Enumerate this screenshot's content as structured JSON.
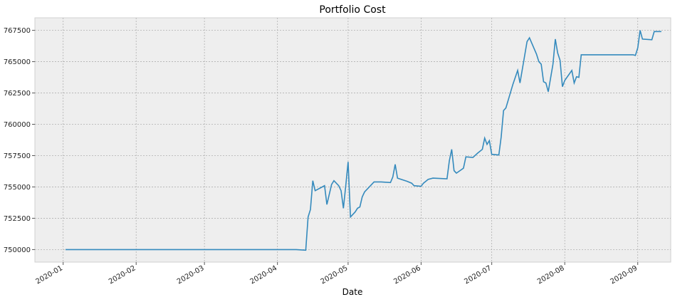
{
  "chart_data": {
    "type": "line",
    "title": "Portfolio Cost",
    "xlabel": "Date",
    "ylabel": "",
    "grid": true,
    "xlim": [
      "2019-12-20",
      "2020-09-15"
    ],
    "ylim": [
      749000,
      768500
    ],
    "x_ticks": [
      {
        "date": "2020-01-01",
        "label": "2020-01"
      },
      {
        "date": "2020-02-01",
        "label": "2020-02"
      },
      {
        "date": "2020-03-01",
        "label": "2020-03"
      },
      {
        "date": "2020-04-01",
        "label": "2020-04"
      },
      {
        "date": "2020-05-01",
        "label": "2020-05"
      },
      {
        "date": "2020-06-01",
        "label": "2020-06"
      },
      {
        "date": "2020-07-01",
        "label": "2020-07"
      },
      {
        "date": "2020-08-01",
        "label": "2020-08"
      },
      {
        "date": "2020-09-01",
        "label": "2020-09"
      }
    ],
    "y_ticks": [
      {
        "value": 750000,
        "label": "750000"
      },
      {
        "value": 752500,
        "label": "752500"
      },
      {
        "value": 755000,
        "label": "755000"
      },
      {
        "value": 757500,
        "label": "757500"
      },
      {
        "value": 760000,
        "label": "760000"
      },
      {
        "value": 762500,
        "label": "762500"
      },
      {
        "value": 765000,
        "label": "765000"
      },
      {
        "value": 767500,
        "label": "767500"
      }
    ],
    "series": [
      {
        "color": "#348abd",
        "points": [
          [
            "2020-01-02",
            750000
          ],
          [
            "2020-04-09",
            750000
          ],
          [
            "2020-04-13",
            749950
          ],
          [
            "2020-04-14",
            752600
          ],
          [
            "2020-04-15",
            753200
          ],
          [
            "2020-04-16",
            755500
          ],
          [
            "2020-04-17",
            754700
          ],
          [
            "2020-04-20",
            755000
          ],
          [
            "2020-04-21",
            755100
          ],
          [
            "2020-04-22",
            753600
          ],
          [
            "2020-04-24",
            755200
          ],
          [
            "2020-04-25",
            755500
          ],
          [
            "2020-04-27",
            755100
          ],
          [
            "2020-04-28",
            754700
          ],
          [
            "2020-04-29",
            753300
          ],
          [
            "2020-04-30",
            755100
          ],
          [
            "2020-05-01",
            757000
          ],
          [
            "2020-05-02",
            752600
          ],
          [
            "2020-05-04",
            753000
          ],
          [
            "2020-05-05",
            753300
          ],
          [
            "2020-05-06",
            753400
          ],
          [
            "2020-05-07",
            754200
          ],
          [
            "2020-05-08",
            754600
          ],
          [
            "2020-05-11",
            755200
          ],
          [
            "2020-05-12",
            755400
          ],
          [
            "2020-05-15",
            755400
          ],
          [
            "2020-05-19",
            755350
          ],
          [
            "2020-05-20",
            755800
          ],
          [
            "2020-05-21",
            756800
          ],
          [
            "2020-05-22",
            755700
          ],
          [
            "2020-05-26",
            755450
          ],
          [
            "2020-05-28",
            755300
          ],
          [
            "2020-05-29",
            755100
          ],
          [
            "2020-06-01",
            755050
          ],
          [
            "2020-06-02",
            755300
          ],
          [
            "2020-06-04",
            755600
          ],
          [
            "2020-06-06",
            755700
          ],
          [
            "2020-06-12",
            755650
          ],
          [
            "2020-06-13",
            757100
          ],
          [
            "2020-06-14",
            758000
          ],
          [
            "2020-06-15",
            756300
          ],
          [
            "2020-06-16",
            756100
          ],
          [
            "2020-06-19",
            756500
          ],
          [
            "2020-06-20",
            757400
          ],
          [
            "2020-06-23",
            757350
          ],
          [
            "2020-06-25",
            757700
          ],
          [
            "2020-06-27",
            758000
          ],
          [
            "2020-06-28",
            758900
          ],
          [
            "2020-06-29",
            758400
          ],
          [
            "2020-06-30",
            758700
          ],
          [
            "2020-07-01",
            757600
          ],
          [
            "2020-07-04",
            757550
          ],
          [
            "2020-07-05",
            759000
          ],
          [
            "2020-07-06",
            761100
          ],
          [
            "2020-07-07",
            761300
          ],
          [
            "2020-07-10",
            763200
          ],
          [
            "2020-07-12",
            764300
          ],
          [
            "2020-07-13",
            763300
          ],
          [
            "2020-07-16",
            766600
          ],
          [
            "2020-07-17",
            766900
          ],
          [
            "2020-07-20",
            765600
          ],
          [
            "2020-07-21",
            765000
          ],
          [
            "2020-07-22",
            764800
          ],
          [
            "2020-07-23",
            763400
          ],
          [
            "2020-07-24",
            763300
          ],
          [
            "2020-07-25",
            762600
          ],
          [
            "2020-07-27",
            764800
          ],
          [
            "2020-07-28",
            766800
          ],
          [
            "2020-07-29",
            765700
          ],
          [
            "2020-07-30",
            765100
          ],
          [
            "2020-07-31",
            763000
          ],
          [
            "2020-08-01",
            763500
          ],
          [
            "2020-08-04",
            764300
          ],
          [
            "2020-08-05",
            763300
          ],
          [
            "2020-08-06",
            763800
          ],
          [
            "2020-08-07",
            763750
          ],
          [
            "2020-08-08",
            765550
          ],
          [
            "2020-08-30",
            765550
          ],
          [
            "2020-08-31",
            765500
          ],
          [
            "2020-09-01",
            766100
          ],
          [
            "2020-09-02",
            767500
          ],
          [
            "2020-09-03",
            766800
          ],
          [
            "2020-09-07",
            766750
          ],
          [
            "2020-09-08",
            767400
          ],
          [
            "2020-09-11",
            767400
          ]
        ]
      }
    ]
  }
}
